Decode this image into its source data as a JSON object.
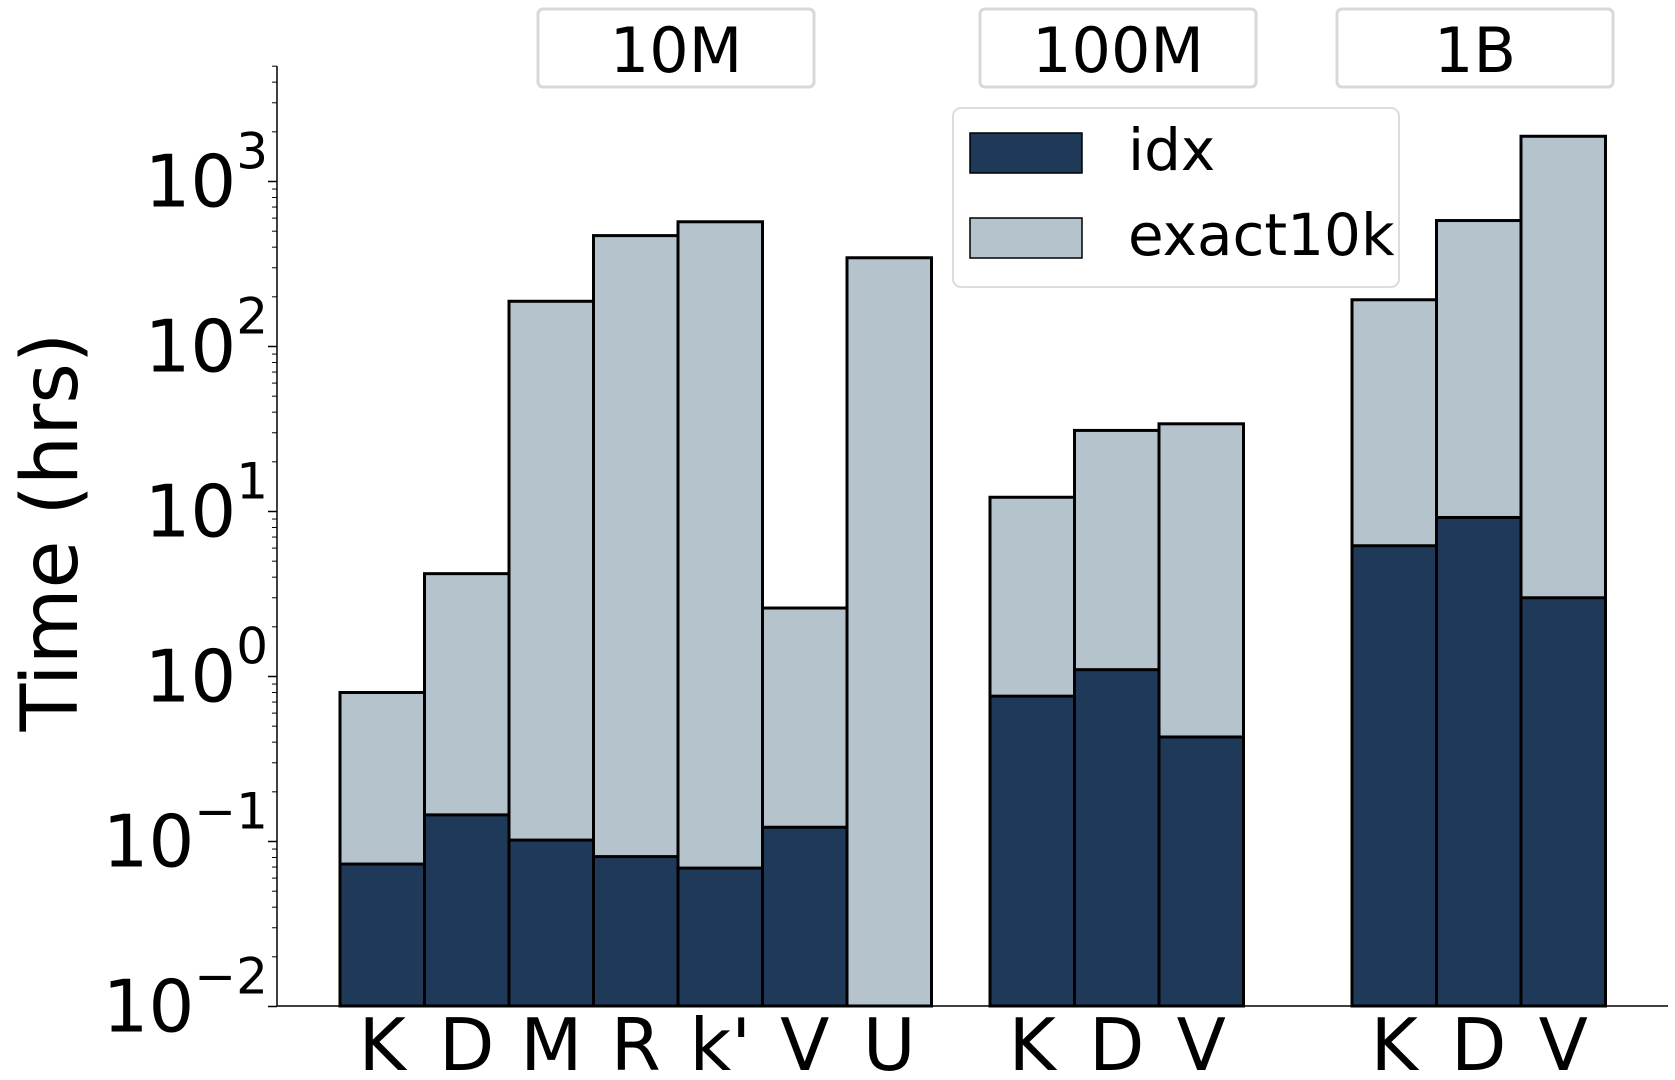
{
  "chart_data": {
    "type": "bar",
    "stacked": true,
    "yscale": "log",
    "ylabel": "Time (hrs)",
    "ylim": [
      0.01,
      5000
    ],
    "yticks": [
      {
        "value": 0.01,
        "base": "10",
        "exp": "−2"
      },
      {
        "value": 0.1,
        "base": "10",
        "exp": "−1"
      },
      {
        "value": 1,
        "base": "10",
        "exp": "0"
      },
      {
        "value": 10,
        "base": "10",
        "exp": "1"
      },
      {
        "value": 100,
        "base": "10",
        "exp": "2"
      },
      {
        "value": 1000,
        "base": "10",
        "exp": "3"
      }
    ],
    "groups": [
      {
        "name": "10M",
        "bars": [
          {
            "label": "K",
            "idx": 0.073,
            "total": 0.8
          },
          {
            "label": "D",
            "idx": 0.145,
            "total": 4.2
          },
          {
            "label": "M",
            "idx": 0.102,
            "total": 188
          },
          {
            "label": "R",
            "idx": 0.081,
            "total": 470
          },
          {
            "label": "k'",
            "idx": 0.069,
            "total": 570
          },
          {
            "label": "V",
            "idx": 0.122,
            "total": 2.6
          },
          {
            "label": "U",
            "idx": 0,
            "total": 345
          }
        ]
      },
      {
        "name": "100M",
        "bars": [
          {
            "label": "K",
            "idx": 0.76,
            "total": 12.2
          },
          {
            "label": "D",
            "idx": 1.1,
            "total": 31
          },
          {
            "label": "V",
            "idx": 0.43,
            "total": 34
          }
        ]
      },
      {
        "name": "1B",
        "bars": [
          {
            "label": "K",
            "idx": 6.2,
            "total": 192
          },
          {
            "label": "D",
            "idx": 9.2,
            "total": 580
          },
          {
            "label": "V",
            "idx": 3.0,
            "total": 1880
          }
        ]
      }
    ],
    "legend": {
      "position": "top-right",
      "entries": [
        {
          "name": "idx",
          "color": "#1f3a58"
        },
        {
          "name": "exact10k",
          "color": "#b5c3cc"
        }
      ]
    },
    "grid": false
  }
}
